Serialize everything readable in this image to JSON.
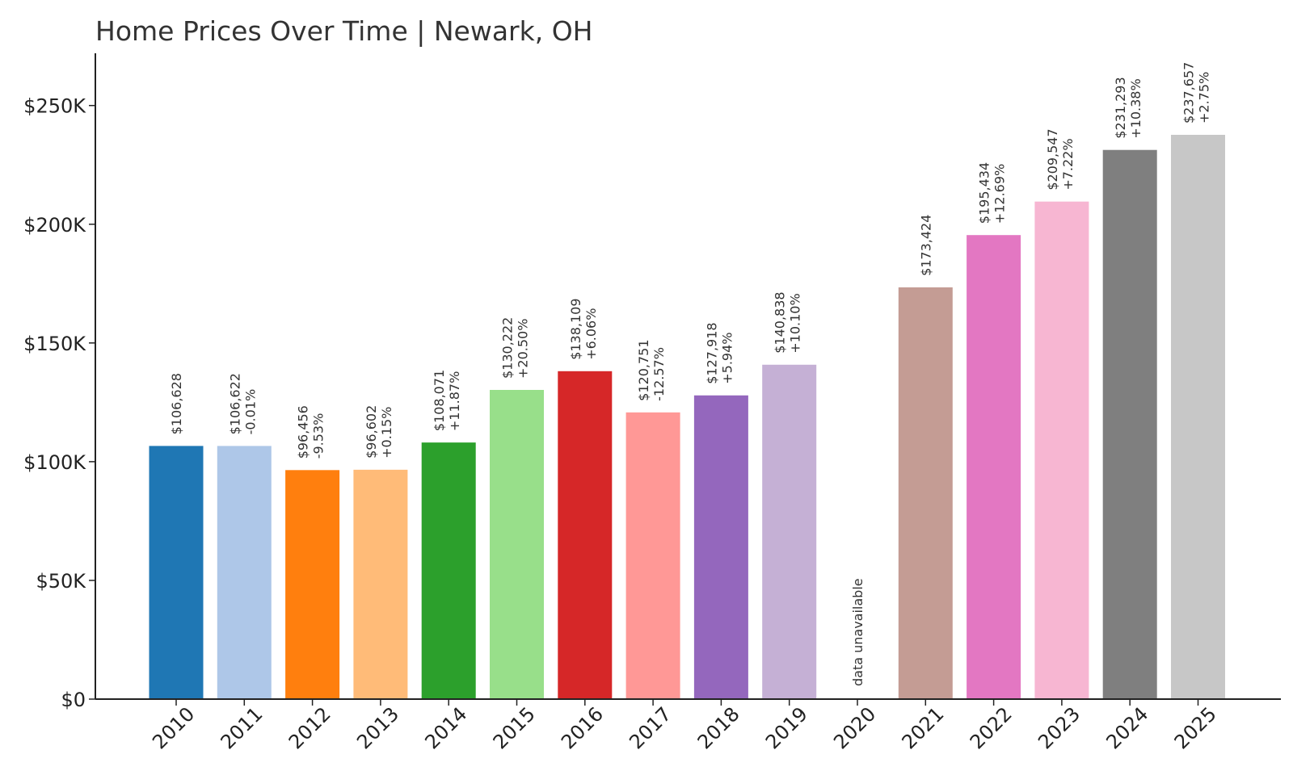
{
  "chart_data": {
    "type": "bar",
    "title": "Home Prices Over Time | Newark, OH",
    "xlabel": "",
    "ylabel": "",
    "ylim": [
      0,
      272000
    ],
    "grid": false,
    "legend": "none",
    "yticks": [
      {
        "value": 0,
        "label": "$0"
      },
      {
        "value": 50000,
        "label": "$50K"
      },
      {
        "value": 100000,
        "label": "$100K"
      },
      {
        "value": 150000,
        "label": "$150K"
      },
      {
        "value": 200000,
        "label": "$200K"
      },
      {
        "value": 250000,
        "label": "$250K"
      }
    ],
    "categories": [
      "2010",
      "2011",
      "2012",
      "2013",
      "2014",
      "2015",
      "2016",
      "2017",
      "2018",
      "2019",
      "2020",
      "2021",
      "2022",
      "2023",
      "2024",
      "2025"
    ],
    "values": [
      106628,
      106622,
      96456,
      96602,
      108071,
      130222,
      138109,
      120751,
      127918,
      140838,
      null,
      173424,
      195434,
      209547,
      231293,
      237657
    ],
    "value_labels": [
      "$106,628",
      "$106,622",
      "$96,456",
      "$96,602",
      "$108,071",
      "$130,222",
      "$138,109",
      "$120,751",
      "$127,918",
      "$140,838",
      "",
      "$173,424",
      "$195,434",
      "$209,547",
      "$231,293",
      "$237,657"
    ],
    "change_labels": [
      "",
      "-0.01%",
      "-9.53%",
      "+0.15%",
      "+11.87%",
      "+20.50%",
      "+6.06%",
      "-12.57%",
      "+5.94%",
      "+10.10%",
      "",
      "",
      "+12.69%",
      "+7.22%",
      "+10.38%",
      "+2.75%"
    ],
    "missing_label": "data unavailable",
    "colors": [
      "#1f77b4",
      "#aec7e8",
      "#ff7f0e",
      "#ffbb78",
      "#2ca02c",
      "#98df8a",
      "#d62728",
      "#ff9896",
      "#9467bd",
      "#c5b0d5",
      "#8c564b",
      "#c49c94",
      "#e377c2",
      "#f7b6d2",
      "#7f7f7f",
      "#c7c7c7"
    ]
  }
}
